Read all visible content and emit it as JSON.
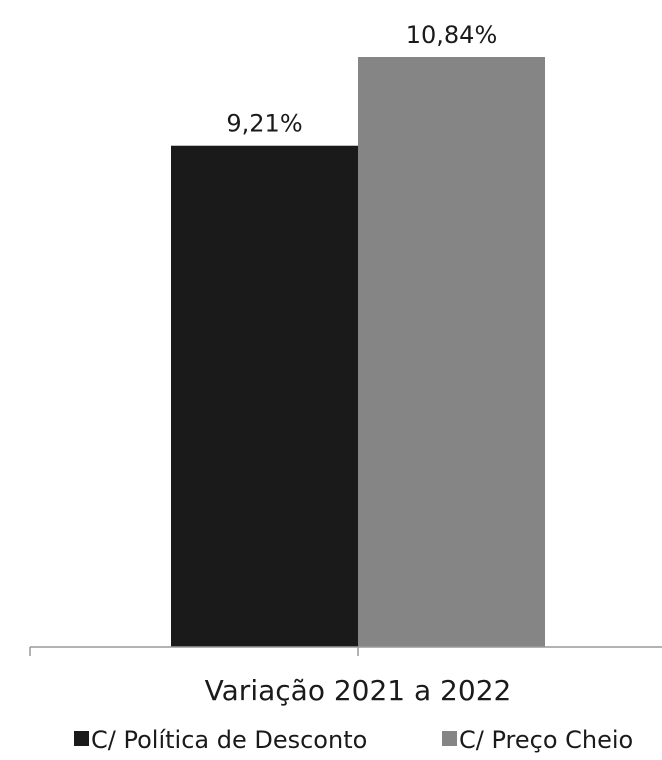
{
  "chart_data": {
    "type": "bar",
    "categories": [
      "Variação 2021 a 2022"
    ],
    "series": [
      {
        "name": "C/ Política de Desconto",
        "values": [
          9.21
        ],
        "value_label": "9,21%",
        "color": "#1a1a1a"
      },
      {
        "name": "C/ Preço Cheio",
        "values": [
          10.84
        ],
        "value_label": "10,84%",
        "color": "#858585"
      }
    ],
    "unit": "%",
    "ylim": [
      0,
      11.5
    ],
    "grid": false,
    "legend_position": "bottom",
    "axis_color": "#999999"
  }
}
